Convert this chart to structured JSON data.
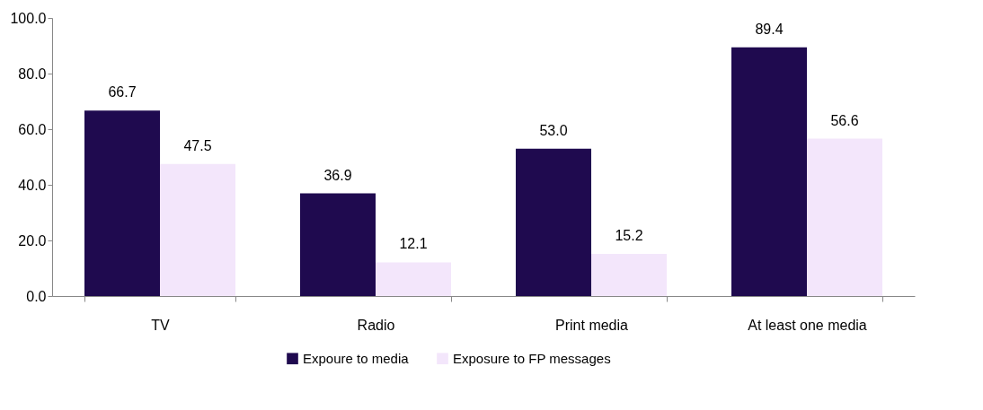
{
  "chart_data": {
    "type": "bar",
    "categories": [
      "TV",
      "Radio",
      "Print media",
      "At least one media"
    ],
    "series": [
      {
        "name": "Expoure to media",
        "color": "#1f0a4f",
        "values": [
          66.7,
          36.9,
          53.0,
          89.4
        ],
        "value_labels": [
          "66.7",
          "36.9",
          "53.0",
          "89.4"
        ]
      },
      {
        "name": "Exposure to FP messages",
        "color": "#f3e6fb",
        "values": [
          47.5,
          12.1,
          15.2,
          56.6
        ],
        "value_labels": [
          "47.5",
          "12.1",
          "15.2",
          "56.6"
        ]
      }
    ],
    "ylim": [
      0,
      100
    ],
    "yticks": [
      {
        "value": 0,
        "label": "0.0"
      },
      {
        "value": 20,
        "label": "20.0"
      },
      {
        "value": 40,
        "label": "40.0"
      },
      {
        "value": 60,
        "label": "60.0"
      },
      {
        "value": 80,
        "label": "80.0"
      },
      {
        "value": 100,
        "label": "100.0"
      }
    ],
    "grid": false,
    "legend": "bottom"
  }
}
